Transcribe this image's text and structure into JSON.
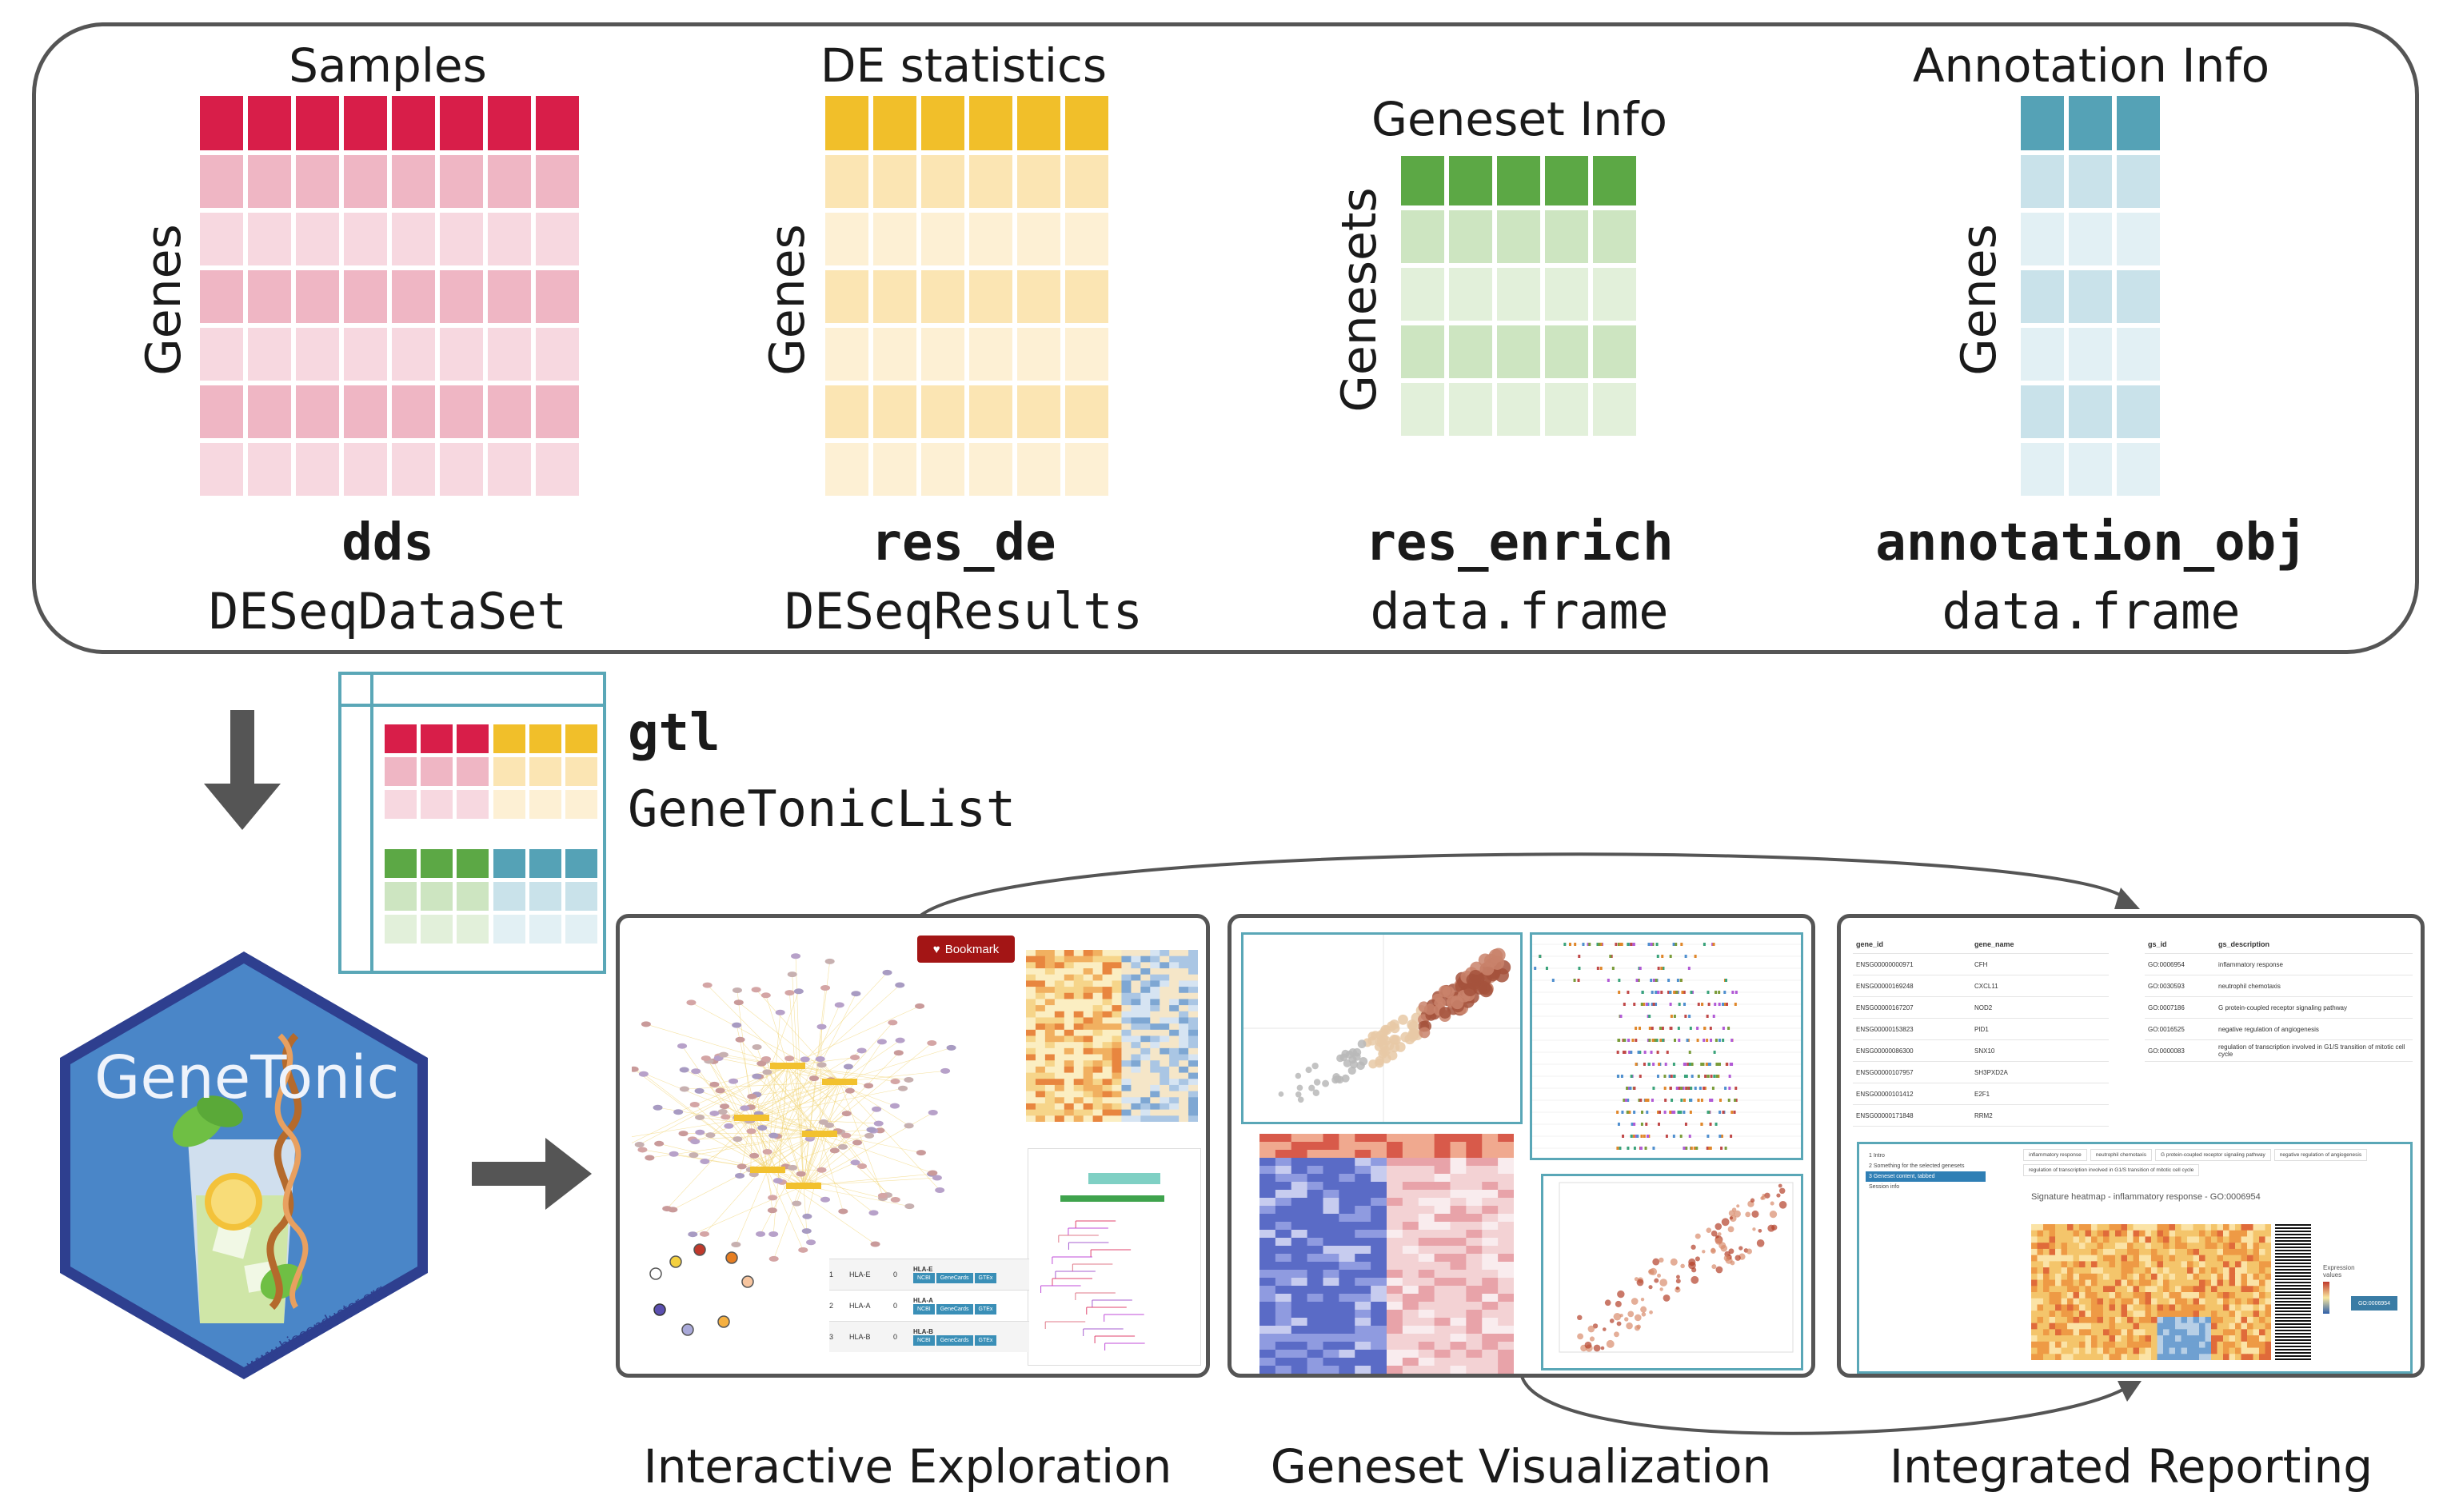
{
  "top_panel": {
    "samples": {
      "header": "Samples",
      "side": "Genes",
      "name": "dds",
      "type": "DESeqDataSet",
      "color_head": "#d81e49",
      "color_a": "#efb6c4",
      "color_b": "#f7d8e0"
    },
    "de": {
      "header": "DE statistics",
      "side": "Genes",
      "name": "res_de",
      "type": "DESeqResults",
      "color_head": "#f1bf2a",
      "color_a": "#fbe5b3",
      "color_b": "#fdf0d4"
    },
    "geneset": {
      "header": "Geneset Info",
      "side": "Genesets",
      "name": "res_enrich",
      "type": "data.frame",
      "color_head": "#5ca845",
      "color_a": "#cde5c1",
      "color_b": "#e2f0da"
    },
    "annotation": {
      "header": "Annotation Info",
      "side": "Genes",
      "name": "annotation_obj",
      "type": "data.frame",
      "color_head": "#55a2b6",
      "color_a": "#c9e2ea",
      "color_b": "#e2f0f4"
    }
  },
  "gtl": {
    "name": "gtl",
    "type": "GeneTonicList"
  },
  "logo": {
    "text": "GeneTonic",
    "url": "www.bioconductor.org",
    "hex_fill": "#4a86c8",
    "hex_border": "#2e3f8f"
  },
  "screens": {
    "bookmark_label": "Bookmark",
    "table_rows": [
      {
        "idx": "1",
        "gene": "HLA-E",
        "n": "0"
      },
      {
        "idx": "2",
        "gene": "HLA-A",
        "n": "0"
      },
      {
        "idx": "3",
        "gene": "HLA-B",
        "n": "0"
      }
    ],
    "table_buttons": [
      "NCBI",
      "GeneCards",
      "GTEx"
    ],
    "report_table": {
      "headers": [
        "gene_id",
        "gene_name"
      ],
      "rows": [
        [
          "ENSG00000000971",
          "CFH"
        ],
        [
          "ENSG00000169248",
          "CXCL11"
        ],
        [
          "ENSG00000167207",
          "NOD2"
        ],
        [
          "ENSG00000153823",
          "PID1"
        ],
        [
          "ENSG00000086300",
          "SNX10"
        ],
        [
          "ENSG00000107957",
          "SH3PXD2A"
        ],
        [
          "ENSG00000101412",
          "E2F1"
        ],
        [
          "ENSG00000171848",
          "RRM2"
        ]
      ]
    },
    "gs_table": {
      "headers": [
        "gs_id",
        "gs_description"
      ],
      "rows": [
        [
          "GO:0006954",
          "inflammatory response"
        ],
        [
          "GO:0030593",
          "neutrophil chemotaxis"
        ],
        [
          "GO:0007186",
          "G protein-coupled receptor signaling pathway"
        ],
        [
          "GO:0016525",
          "negative regulation of angiogenesis"
        ],
        [
          "GO:0000083",
          "regulation of transcription involved in G1/S transition of mitotic cell cycle"
        ]
      ]
    },
    "report_menu": [
      "1 Intro",
      "2 Something for the selected genesets",
      "3 Geneset content, tabbed",
      "Session info"
    ],
    "report_tags": [
      "inflammatory response",
      "neutrophil chemotaxis",
      "G protein-coupled receptor signaling pathway",
      "negative regulation of angiogenesis",
      "regulation of transcription involved in G1/S transition of mitotic cell cycle"
    ],
    "heatmap_title": "Signature heatmap - inflammatory response - GO:0006954",
    "legend_title": "Expression values",
    "go_button": "GO:0006954"
  },
  "captions": {
    "interactive": "Interactive Exploration",
    "visualization": "Geneset Visualization",
    "reporting": "Integrated Reporting"
  }
}
